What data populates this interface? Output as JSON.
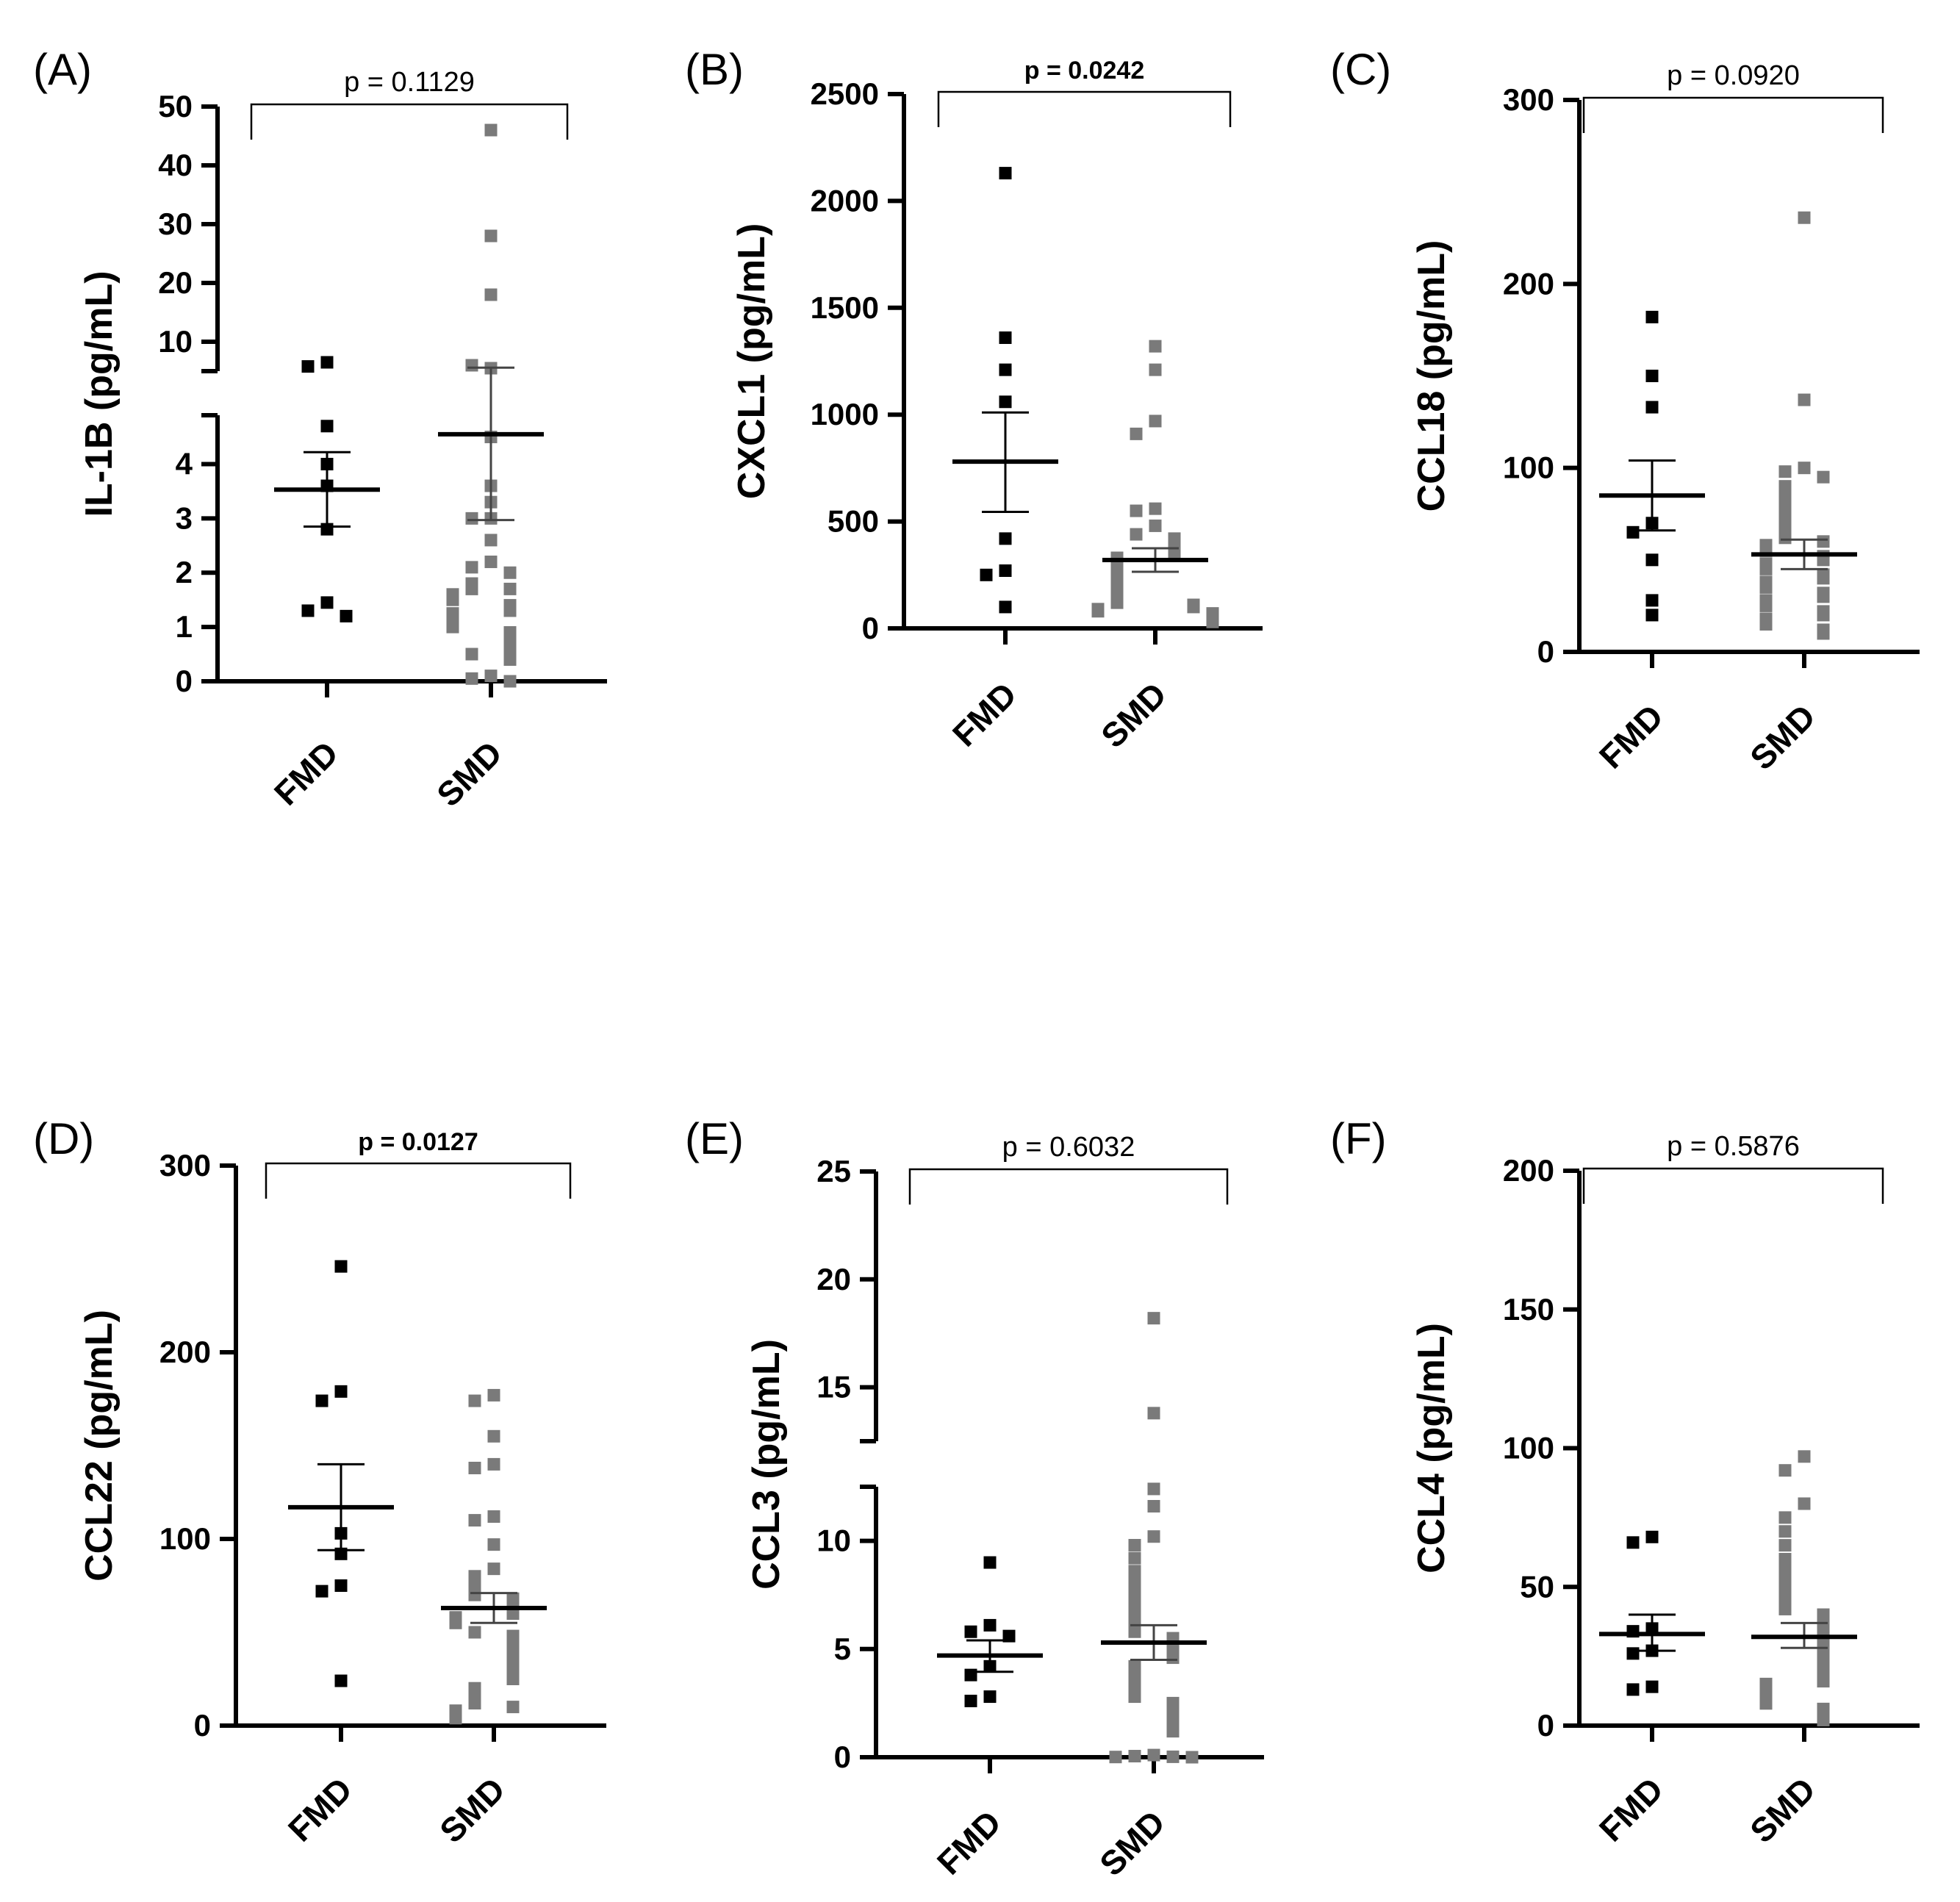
{
  "colors": {
    "fmd": "#000000",
    "smd": "#7a7a7a",
    "axis": "#000000",
    "bracket": "#000000"
  },
  "chart_data": [
    {
      "panel": "(A)",
      "type": "scatter",
      "ylabel": "IL-1B (pg/mL)",
      "categories": [
        "FMD",
        "SMD"
      ],
      "p_text": "p = 0.1129",
      "p_bold": false,
      "axis_break": {
        "lower": [
          0,
          4.9
        ],
        "upper": [
          5,
          50
        ]
      },
      "lower_ticks": [
        0,
        1,
        2,
        3,
        4
      ],
      "upper_ticks": [
        10,
        20,
        30,
        40,
        50
      ],
      "series": [
        {
          "name": "FMD",
          "mean": 3.53,
          "sem_low": 2.85,
          "sem_high": 4.22,
          "values": [
            6.5,
            5.8,
            4.7,
            4.0,
            3.6,
            2.8,
            1.45,
            1.3,
            1.2
          ]
        },
        {
          "name": "SMD",
          "mean": 4.55,
          "sem_low": 2.97,
          "sem_high": 5.6,
          "values": [
            46,
            28,
            18,
            5.5,
            6.0,
            4.5,
            3.6,
            3.3,
            3.0,
            3.0,
            2.6,
            2.2,
            2.1,
            2.0,
            1.8,
            1.7,
            1.7,
            1.6,
            1.5,
            1.4,
            1.3,
            1.25,
            1.2,
            1.1,
            1.0,
            0.9,
            0.8,
            0.7,
            0.5,
            0.5,
            0.4,
            0.1,
            0.05,
            0.0
          ]
        }
      ]
    },
    {
      "panel": "(B)",
      "type": "scatter",
      "ylabel": "CXCL1 (pg/mL)",
      "categories": [
        "FMD",
        "SMD"
      ],
      "p_text": "p = 0.0242",
      "p_bold": true,
      "ylim": [
        0,
        2500
      ],
      "yticks": [
        0,
        500,
        1000,
        1500,
        2000,
        2500
      ],
      "series": [
        {
          "name": "FMD",
          "mean": 780,
          "sem_low": 545,
          "sem_high": 1010,
          "values": [
            2130,
            1360,
            1210,
            1060,
            420,
            270,
            250,
            100
          ]
        },
        {
          "name": "SMD",
          "mean": 320,
          "sem_low": 265,
          "sem_high": 375,
          "values": [
            1320,
            1210,
            970,
            910,
            560,
            550,
            480,
            440,
            420,
            390,
            370,
            350,
            330,
            310,
            290,
            270,
            250,
            230,
            210,
            190,
            170,
            150,
            130,
            120,
            110,
            100,
            90,
            80,
            70,
            60,
            50,
            40,
            30
          ]
        }
      ]
    },
    {
      "panel": "(C)",
      "type": "scatter",
      "ylabel": "CCL18 (pg/mL)",
      "categories": [
        "FMD",
        "SMD"
      ],
      "p_text": "p = 0.0920",
      "p_bold": false,
      "ylim": [
        0,
        300
      ],
      "yticks": [
        0,
        100,
        200,
        300
      ],
      "series": [
        {
          "name": "FMD",
          "mean": 85,
          "sem_low": 66,
          "sem_high": 104,
          "values": [
            182,
            150,
            133,
            70,
            65,
            50,
            28,
            20
          ]
        },
        {
          "name": "SMD",
          "mean": 53,
          "sem_low": 45,
          "sem_high": 61,
          "values": [
            236,
            137,
            100,
            98,
            95,
            90,
            85,
            80,
            75,
            70,
            65,
            62,
            60,
            58,
            55,
            52,
            50,
            48,
            45,
            42,
            40,
            38,
            35,
            32,
            30,
            28,
            25,
            22,
            20,
            18,
            15,
            12,
            10
          ]
        }
      ]
    },
    {
      "panel": "(D)",
      "type": "scatter",
      "ylabel": "CCL22 (pg/mL)",
      "categories": [
        "FMD",
        "SMD"
      ],
      "p_text": "p = 0.0127",
      "p_bold": true,
      "ylim": [
        0,
        300
      ],
      "yticks": [
        0,
        100,
        200,
        300
      ],
      "series": [
        {
          "name": "FMD",
          "mean": 117,
          "sem_low": 94,
          "sem_high": 140,
          "values": [
            246,
            179,
            174,
            103,
            92,
            75,
            72,
            24
          ]
        },
        {
          "name": "SMD",
          "mean": 63,
          "sem_low": 55,
          "sem_high": 71,
          "values": [
            177,
            174,
            155,
            140,
            138,
            112,
            110,
            97,
            84,
            80,
            75,
            70,
            68,
            65,
            62,
            60,
            58,
            55,
            50,
            48,
            45,
            42,
            38,
            35,
            32,
            28,
            25,
            20,
            15,
            12,
            10,
            8,
            5,
            4
          ]
        }
      ]
    },
    {
      "panel": "(E)",
      "type": "scatter",
      "ylabel": "CCL3 (pg/mL)",
      "categories": [
        "FMD",
        "SMD"
      ],
      "p_text": "p = 0.6032",
      "p_bold": false,
      "axis_break": {
        "lower": [
          0,
          12.5
        ],
        "upper": [
          12.5,
          25
        ]
      },
      "lower_ticks": [
        0,
        5,
        10
      ],
      "upper_ticks": [
        15,
        20,
        25
      ],
      "series": [
        {
          "name": "FMD",
          "mean": 4.7,
          "sem_low": 3.95,
          "sem_high": 5.4,
          "values": [
            9.0,
            6.1,
            5.8,
            5.6,
            4.2,
            3.8,
            2.8,
            2.6
          ]
        },
        {
          "name": "SMD",
          "mean": 5.3,
          "sem_low": 4.5,
          "sem_high": 6.1,
          "values": [
            18.2,
            13.8,
            12.4,
            11.6,
            10.2,
            9.8,
            9.2,
            8.6,
            8.1,
            7.6,
            7.1,
            6.6,
            6.1,
            5.8,
            5.5,
            5.2,
            4.9,
            4.6,
            4.2,
            3.9,
            3.5,
            3.1,
            2.8,
            2.5,
            2.2,
            2.0,
            1.8,
            1.5,
            1.2,
            0.1,
            0.05,
            0.02,
            0.01,
            0.0
          ]
        }
      ]
    },
    {
      "panel": "(F)",
      "type": "scatter",
      "ylabel": "CCL4 (pg/mL)",
      "categories": [
        "FMD",
        "SMD"
      ],
      "p_text": "p = 0.5876",
      "p_bold": false,
      "ylim": [
        0,
        200
      ],
      "yticks": [
        0,
        50,
        100,
        150,
        200
      ],
      "series": [
        {
          "name": "FMD",
          "mean": 33,
          "sem_low": 27,
          "sem_high": 40,
          "values": [
            68,
            66,
            35,
            34,
            27,
            26,
            14,
            13
          ]
        },
        {
          "name": "SMD",
          "mean": 32,
          "sem_low": 28,
          "sem_high": 37,
          "values": [
            97,
            92,
            80,
            75,
            70,
            65,
            60,
            56,
            52,
            48,
            45,
            42,
            40,
            38,
            36,
            34,
            32,
            30,
            28,
            26,
            24,
            22,
            20,
            18,
            16,
            15,
            13,
            12,
            10,
            8,
            6,
            4,
            2
          ]
        }
      ]
    }
  ]
}
